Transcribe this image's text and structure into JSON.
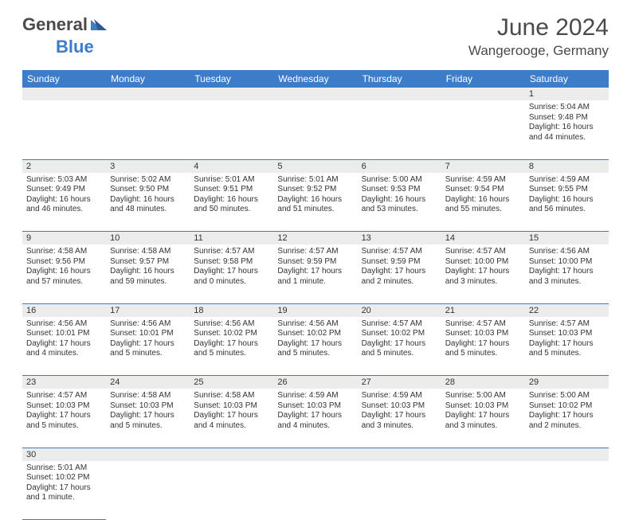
{
  "brand": {
    "part1": "General",
    "part2": "Blue"
  },
  "title": {
    "month": "June 2024",
    "location": "Wangerooge, Germany"
  },
  "colors": {
    "header_bg": "#3d7cc9",
    "header_text": "#ffffff",
    "daynum_bg": "#ececec",
    "row_border": "#3d7cc9",
    "text": "#333333",
    "logo_gray": "#4a4a4a",
    "logo_blue": "#3d7cc9",
    "page_bg": "#ffffff"
  },
  "weekdays": [
    "Sunday",
    "Monday",
    "Tuesday",
    "Wednesday",
    "Thursday",
    "Friday",
    "Saturday"
  ],
  "weeks": [
    [
      null,
      null,
      null,
      null,
      null,
      null,
      {
        "n": "1",
        "sunrise": "Sunrise: 5:04 AM",
        "sunset": "Sunset: 9:48 PM",
        "day1": "Daylight: 16 hours",
        "day2": "and 44 minutes."
      }
    ],
    [
      {
        "n": "2",
        "sunrise": "Sunrise: 5:03 AM",
        "sunset": "Sunset: 9:49 PM",
        "day1": "Daylight: 16 hours",
        "day2": "and 46 minutes."
      },
      {
        "n": "3",
        "sunrise": "Sunrise: 5:02 AM",
        "sunset": "Sunset: 9:50 PM",
        "day1": "Daylight: 16 hours",
        "day2": "and 48 minutes."
      },
      {
        "n": "4",
        "sunrise": "Sunrise: 5:01 AM",
        "sunset": "Sunset: 9:51 PM",
        "day1": "Daylight: 16 hours",
        "day2": "and 50 minutes."
      },
      {
        "n": "5",
        "sunrise": "Sunrise: 5:01 AM",
        "sunset": "Sunset: 9:52 PM",
        "day1": "Daylight: 16 hours",
        "day2": "and 51 minutes."
      },
      {
        "n": "6",
        "sunrise": "Sunrise: 5:00 AM",
        "sunset": "Sunset: 9:53 PM",
        "day1": "Daylight: 16 hours",
        "day2": "and 53 minutes."
      },
      {
        "n": "7",
        "sunrise": "Sunrise: 4:59 AM",
        "sunset": "Sunset: 9:54 PM",
        "day1": "Daylight: 16 hours",
        "day2": "and 55 minutes."
      },
      {
        "n": "8",
        "sunrise": "Sunrise: 4:59 AM",
        "sunset": "Sunset: 9:55 PM",
        "day1": "Daylight: 16 hours",
        "day2": "and 56 minutes."
      }
    ],
    [
      {
        "n": "9",
        "sunrise": "Sunrise: 4:58 AM",
        "sunset": "Sunset: 9:56 PM",
        "day1": "Daylight: 16 hours",
        "day2": "and 57 minutes."
      },
      {
        "n": "10",
        "sunrise": "Sunrise: 4:58 AM",
        "sunset": "Sunset: 9:57 PM",
        "day1": "Daylight: 16 hours",
        "day2": "and 59 minutes."
      },
      {
        "n": "11",
        "sunrise": "Sunrise: 4:57 AM",
        "sunset": "Sunset: 9:58 PM",
        "day1": "Daylight: 17 hours",
        "day2": "and 0 minutes."
      },
      {
        "n": "12",
        "sunrise": "Sunrise: 4:57 AM",
        "sunset": "Sunset: 9:59 PM",
        "day1": "Daylight: 17 hours",
        "day2": "and 1 minute."
      },
      {
        "n": "13",
        "sunrise": "Sunrise: 4:57 AM",
        "sunset": "Sunset: 9:59 PM",
        "day1": "Daylight: 17 hours",
        "day2": "and 2 minutes."
      },
      {
        "n": "14",
        "sunrise": "Sunrise: 4:57 AM",
        "sunset": "Sunset: 10:00 PM",
        "day1": "Daylight: 17 hours",
        "day2": "and 3 minutes."
      },
      {
        "n": "15",
        "sunrise": "Sunrise: 4:56 AM",
        "sunset": "Sunset: 10:00 PM",
        "day1": "Daylight: 17 hours",
        "day2": "and 3 minutes."
      }
    ],
    [
      {
        "n": "16",
        "sunrise": "Sunrise: 4:56 AM",
        "sunset": "Sunset: 10:01 PM",
        "day1": "Daylight: 17 hours",
        "day2": "and 4 minutes."
      },
      {
        "n": "17",
        "sunrise": "Sunrise: 4:56 AM",
        "sunset": "Sunset: 10:01 PM",
        "day1": "Daylight: 17 hours",
        "day2": "and 5 minutes."
      },
      {
        "n": "18",
        "sunrise": "Sunrise: 4:56 AM",
        "sunset": "Sunset: 10:02 PM",
        "day1": "Daylight: 17 hours",
        "day2": "and 5 minutes."
      },
      {
        "n": "19",
        "sunrise": "Sunrise: 4:56 AM",
        "sunset": "Sunset: 10:02 PM",
        "day1": "Daylight: 17 hours",
        "day2": "and 5 minutes."
      },
      {
        "n": "20",
        "sunrise": "Sunrise: 4:57 AM",
        "sunset": "Sunset: 10:02 PM",
        "day1": "Daylight: 17 hours",
        "day2": "and 5 minutes."
      },
      {
        "n": "21",
        "sunrise": "Sunrise: 4:57 AM",
        "sunset": "Sunset: 10:03 PM",
        "day1": "Daylight: 17 hours",
        "day2": "and 5 minutes."
      },
      {
        "n": "22",
        "sunrise": "Sunrise: 4:57 AM",
        "sunset": "Sunset: 10:03 PM",
        "day1": "Daylight: 17 hours",
        "day2": "and 5 minutes."
      }
    ],
    [
      {
        "n": "23",
        "sunrise": "Sunrise: 4:57 AM",
        "sunset": "Sunset: 10:03 PM",
        "day1": "Daylight: 17 hours",
        "day2": "and 5 minutes."
      },
      {
        "n": "24",
        "sunrise": "Sunrise: 4:58 AM",
        "sunset": "Sunset: 10:03 PM",
        "day1": "Daylight: 17 hours",
        "day2": "and 5 minutes."
      },
      {
        "n": "25",
        "sunrise": "Sunrise: 4:58 AM",
        "sunset": "Sunset: 10:03 PM",
        "day1": "Daylight: 17 hours",
        "day2": "and 4 minutes."
      },
      {
        "n": "26",
        "sunrise": "Sunrise: 4:59 AM",
        "sunset": "Sunset: 10:03 PM",
        "day1": "Daylight: 17 hours",
        "day2": "and 4 minutes."
      },
      {
        "n": "27",
        "sunrise": "Sunrise: 4:59 AM",
        "sunset": "Sunset: 10:03 PM",
        "day1": "Daylight: 17 hours",
        "day2": "and 3 minutes."
      },
      {
        "n": "28",
        "sunrise": "Sunrise: 5:00 AM",
        "sunset": "Sunset: 10:03 PM",
        "day1": "Daylight: 17 hours",
        "day2": "and 3 minutes."
      },
      {
        "n": "29",
        "sunrise": "Sunrise: 5:00 AM",
        "sunset": "Sunset: 10:02 PM",
        "day1": "Daylight: 17 hours",
        "day2": "and 2 minutes."
      }
    ],
    [
      {
        "n": "30",
        "sunrise": "Sunrise: 5:01 AM",
        "sunset": "Sunset: 10:02 PM",
        "day1": "Daylight: 17 hours",
        "day2": "and 1 minute."
      },
      null,
      null,
      null,
      null,
      null,
      null
    ]
  ]
}
